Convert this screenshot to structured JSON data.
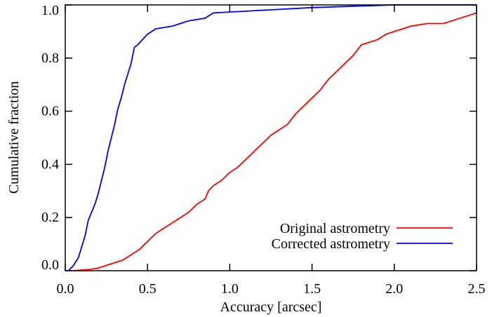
{
  "chart_data": {
    "type": "line",
    "xlabel": "Accuracy [arcsec]",
    "ylabel": "Cumulative fraction",
    "xlim": [
      0,
      2.5
    ],
    "ylim": [
      0,
      1.0
    ],
    "xticks": [
      {
        "value": 0,
        "label": "0.0"
      },
      0.5,
      {
        "value": 1,
        "label": "1.0"
      },
      1.5,
      {
        "value": 2,
        "label": "2.0"
      },
      2.5
    ],
    "yticks": [
      {
        "value": 0,
        "label": "0.0"
      },
      0.2,
      0.4,
      0.6,
      0.8,
      {
        "value": 1,
        "label": "1.0"
      }
    ],
    "legend": "lower right",
    "series": [
      {
        "name": "Original astrometry",
        "color": "#ff0000",
        "x": [
          0.05,
          0.15,
          0.2,
          0.25,
          0.3,
          0.35,
          0.4,
          0.45,
          0.5,
          0.55,
          0.6,
          0.65,
          0.7,
          0.75,
          0.8,
          0.85,
          0.87,
          0.9,
          0.95,
          1.0,
          1.05,
          1.1,
          1.15,
          1.2,
          1.25,
          1.3,
          1.35,
          1.4,
          1.45,
          1.5,
          1.55,
          1.6,
          1.65,
          1.7,
          1.75,
          1.8,
          1.85,
          1.9,
          1.95,
          2.0,
          2.05,
          2.1,
          2.2,
          2.3,
          2.35,
          2.45,
          2.5
        ],
        "values": [
          0,
          0.005,
          0.01,
          0.02,
          0.03,
          0.04,
          0.06,
          0.08,
          0.11,
          0.14,
          0.16,
          0.18,
          0.2,
          0.22,
          0.25,
          0.27,
          0.3,
          0.32,
          0.34,
          0.37,
          0.39,
          0.42,
          0.45,
          0.48,
          0.51,
          0.53,
          0.55,
          0.59,
          0.62,
          0.65,
          0.68,
          0.72,
          0.75,
          0.78,
          0.81,
          0.85,
          0.86,
          0.87,
          0.89,
          0.9,
          0.91,
          0.92,
          0.93,
          0.93,
          0.94,
          0.96,
          0.97
        ]
      },
      {
        "name": "Corrected astrometry",
        "color": "#0000ff",
        "x": [
          0.02,
          0.05,
          0.08,
          0.1,
          0.12,
          0.14,
          0.16,
          0.18,
          0.2,
          0.22,
          0.24,
          0.26,
          0.28,
          0.3,
          0.32,
          0.34,
          0.36,
          0.38,
          0.4,
          0.42,
          0.44,
          0.47,
          0.5,
          0.55,
          0.65,
          0.75,
          0.85,
          0.9,
          1.2,
          1.5,
          2.0,
          2.5
        ],
        "values": [
          0,
          0.02,
          0.05,
          0.09,
          0.13,
          0.19,
          0.22,
          0.25,
          0.29,
          0.34,
          0.39,
          0.45,
          0.5,
          0.55,
          0.61,
          0.65,
          0.7,
          0.74,
          0.78,
          0.84,
          0.85,
          0.87,
          0.89,
          0.91,
          0.92,
          0.94,
          0.95,
          0.97,
          0.98,
          0.99,
          1.0,
          1.0
        ]
      }
    ]
  }
}
